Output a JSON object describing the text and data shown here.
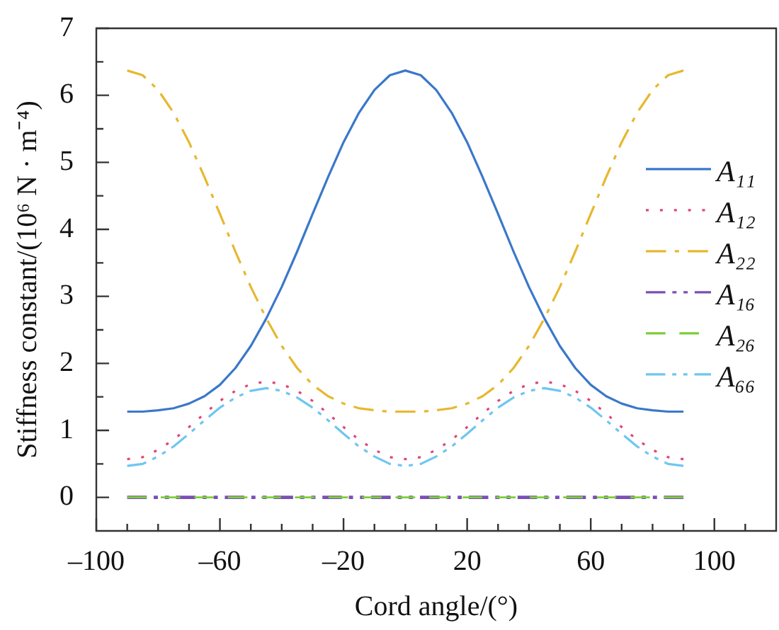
{
  "chart_data": {
    "type": "line",
    "xlabel": "Cord angle/(°)",
    "ylabel": "Stiffness constant/(10⁶ N · m⁻⁴)",
    "x": [
      -90,
      -85,
      -80,
      -75,
      -70,
      -65,
      -60,
      -55,
      -50,
      -45,
      -40,
      -35,
      -30,
      -25,
      -20,
      -15,
      -10,
      -5,
      0,
      5,
      10,
      15,
      20,
      25,
      30,
      35,
      40,
      45,
      50,
      55,
      60,
      65,
      70,
      75,
      80,
      85,
      90
    ],
    "series": [
      {
        "name": "A₁₁",
        "color": "#3a78c9",
        "line_style": "solid",
        "values": [
          1.28,
          1.28,
          1.3,
          1.33,
          1.4,
          1.51,
          1.68,
          1.93,
          2.26,
          2.67,
          3.14,
          3.67,
          4.23,
          4.78,
          5.3,
          5.74,
          6.08,
          6.3,
          6.37,
          6.3,
          6.08,
          5.74,
          5.3,
          4.78,
          4.23,
          3.67,
          3.14,
          2.67,
          2.26,
          1.93,
          1.68,
          1.51,
          1.4,
          1.33,
          1.3,
          1.28,
          1.28
        ]
      },
      {
        "name": "A₁₂",
        "color": "#e0457b",
        "line_style": "dotted",
        "values": [
          0.57,
          0.6,
          0.71,
          0.86,
          1.05,
          1.25,
          1.44,
          1.59,
          1.69,
          1.73,
          1.69,
          1.59,
          1.44,
          1.25,
          1.05,
          0.86,
          0.71,
          0.6,
          0.57,
          0.6,
          0.71,
          0.86,
          1.05,
          1.25,
          1.44,
          1.59,
          1.69,
          1.73,
          1.69,
          1.59,
          1.44,
          1.25,
          1.05,
          0.86,
          0.71,
          0.6,
          0.57
        ]
      },
      {
        "name": "A₂₂",
        "color": "#e6b830",
        "line_style": "dashdot",
        "values": [
          6.37,
          6.3,
          6.08,
          5.74,
          5.3,
          4.78,
          4.23,
          3.67,
          3.14,
          2.67,
          2.26,
          1.93,
          1.68,
          1.51,
          1.4,
          1.33,
          1.3,
          1.28,
          1.28,
          1.28,
          1.3,
          1.33,
          1.4,
          1.51,
          1.68,
          1.93,
          2.26,
          2.67,
          3.14,
          3.67,
          4.23,
          4.78,
          5.3,
          5.74,
          6.08,
          6.3,
          6.37
        ]
      },
      {
        "name": "A₁₆",
        "color": "#7b4fb5",
        "line_style": "dashdotdot",
        "values": [
          0,
          0,
          0,
          0,
          0,
          0,
          0,
          0,
          0,
          0,
          0,
          0,
          0,
          0,
          0,
          0,
          0,
          0,
          0,
          0,
          0,
          0,
          0,
          0,
          0,
          0,
          0,
          0,
          0,
          0,
          0,
          0,
          0,
          0,
          0,
          0,
          0
        ]
      },
      {
        "name": "A₂₆",
        "color": "#7ccd3a",
        "line_style": "dashed",
        "values": [
          0,
          0,
          0,
          0,
          0,
          0,
          0,
          0,
          0,
          0,
          0,
          0,
          0,
          0,
          0,
          0,
          0,
          0,
          0,
          0,
          0,
          0,
          0,
          0,
          0,
          0,
          0,
          0,
          0,
          0,
          0,
          0,
          0,
          0,
          0,
          0,
          0
        ]
      },
      {
        "name": "A₆₆",
        "color": "#6ec6f0",
        "line_style": "dashdotdot",
        "values": [
          0.47,
          0.5,
          0.61,
          0.76,
          0.95,
          1.15,
          1.34,
          1.49,
          1.59,
          1.63,
          1.59,
          1.49,
          1.34,
          1.15,
          0.95,
          0.76,
          0.61,
          0.5,
          0.47,
          0.5,
          0.61,
          0.76,
          0.95,
          1.15,
          1.34,
          1.49,
          1.59,
          1.63,
          1.59,
          1.49,
          1.34,
          1.15,
          0.95,
          0.76,
          0.61,
          0.5,
          0.47
        ]
      }
    ],
    "xlim": [
      -100,
      120
    ],
    "xticks": [
      {
        "value": -100,
        "label": "–100"
      },
      {
        "value": -90,
        "label": null
      },
      {
        "value": -80,
        "label": null
      },
      {
        "value": -70,
        "label": null
      },
      {
        "value": -60,
        "label": "–60"
      },
      {
        "value": -50,
        "label": null
      },
      {
        "value": -40,
        "label": null
      },
      {
        "value": -30,
        "label": null
      },
      {
        "value": -20,
        "label": "–20"
      },
      {
        "value": -10,
        "label": null
      },
      {
        "value": 0,
        "label": null
      },
      {
        "value": 10,
        "label": null
      },
      20,
      {
        "value": 30,
        "label": null
      },
      {
        "value": 40,
        "label": null
      },
      {
        "value": 50,
        "label": null
      },
      60,
      {
        "value": 70,
        "label": null
      },
      {
        "value": 80,
        "label": null
      },
      {
        "value": 90,
        "label": null
      },
      100,
      {
        "value": 110,
        "label": null
      }
    ],
    "ylim": [
      -0.5,
      7
    ],
    "yticks": [
      0,
      {
        "value": 0.5,
        "label": null
      },
      1,
      {
        "value": 1.5,
        "label": null
      },
      2,
      {
        "value": 2.5,
        "label": null
      },
      3,
      {
        "value": 3.5,
        "label": null
      },
      4,
      {
        "value": 4.5,
        "label": null
      },
      5,
      {
        "value": 5.5,
        "label": null
      },
      6,
      {
        "value": 6.5,
        "label": null
      },
      7
    ],
    "grid": false,
    "legend": "right",
    "marker": "none"
  }
}
